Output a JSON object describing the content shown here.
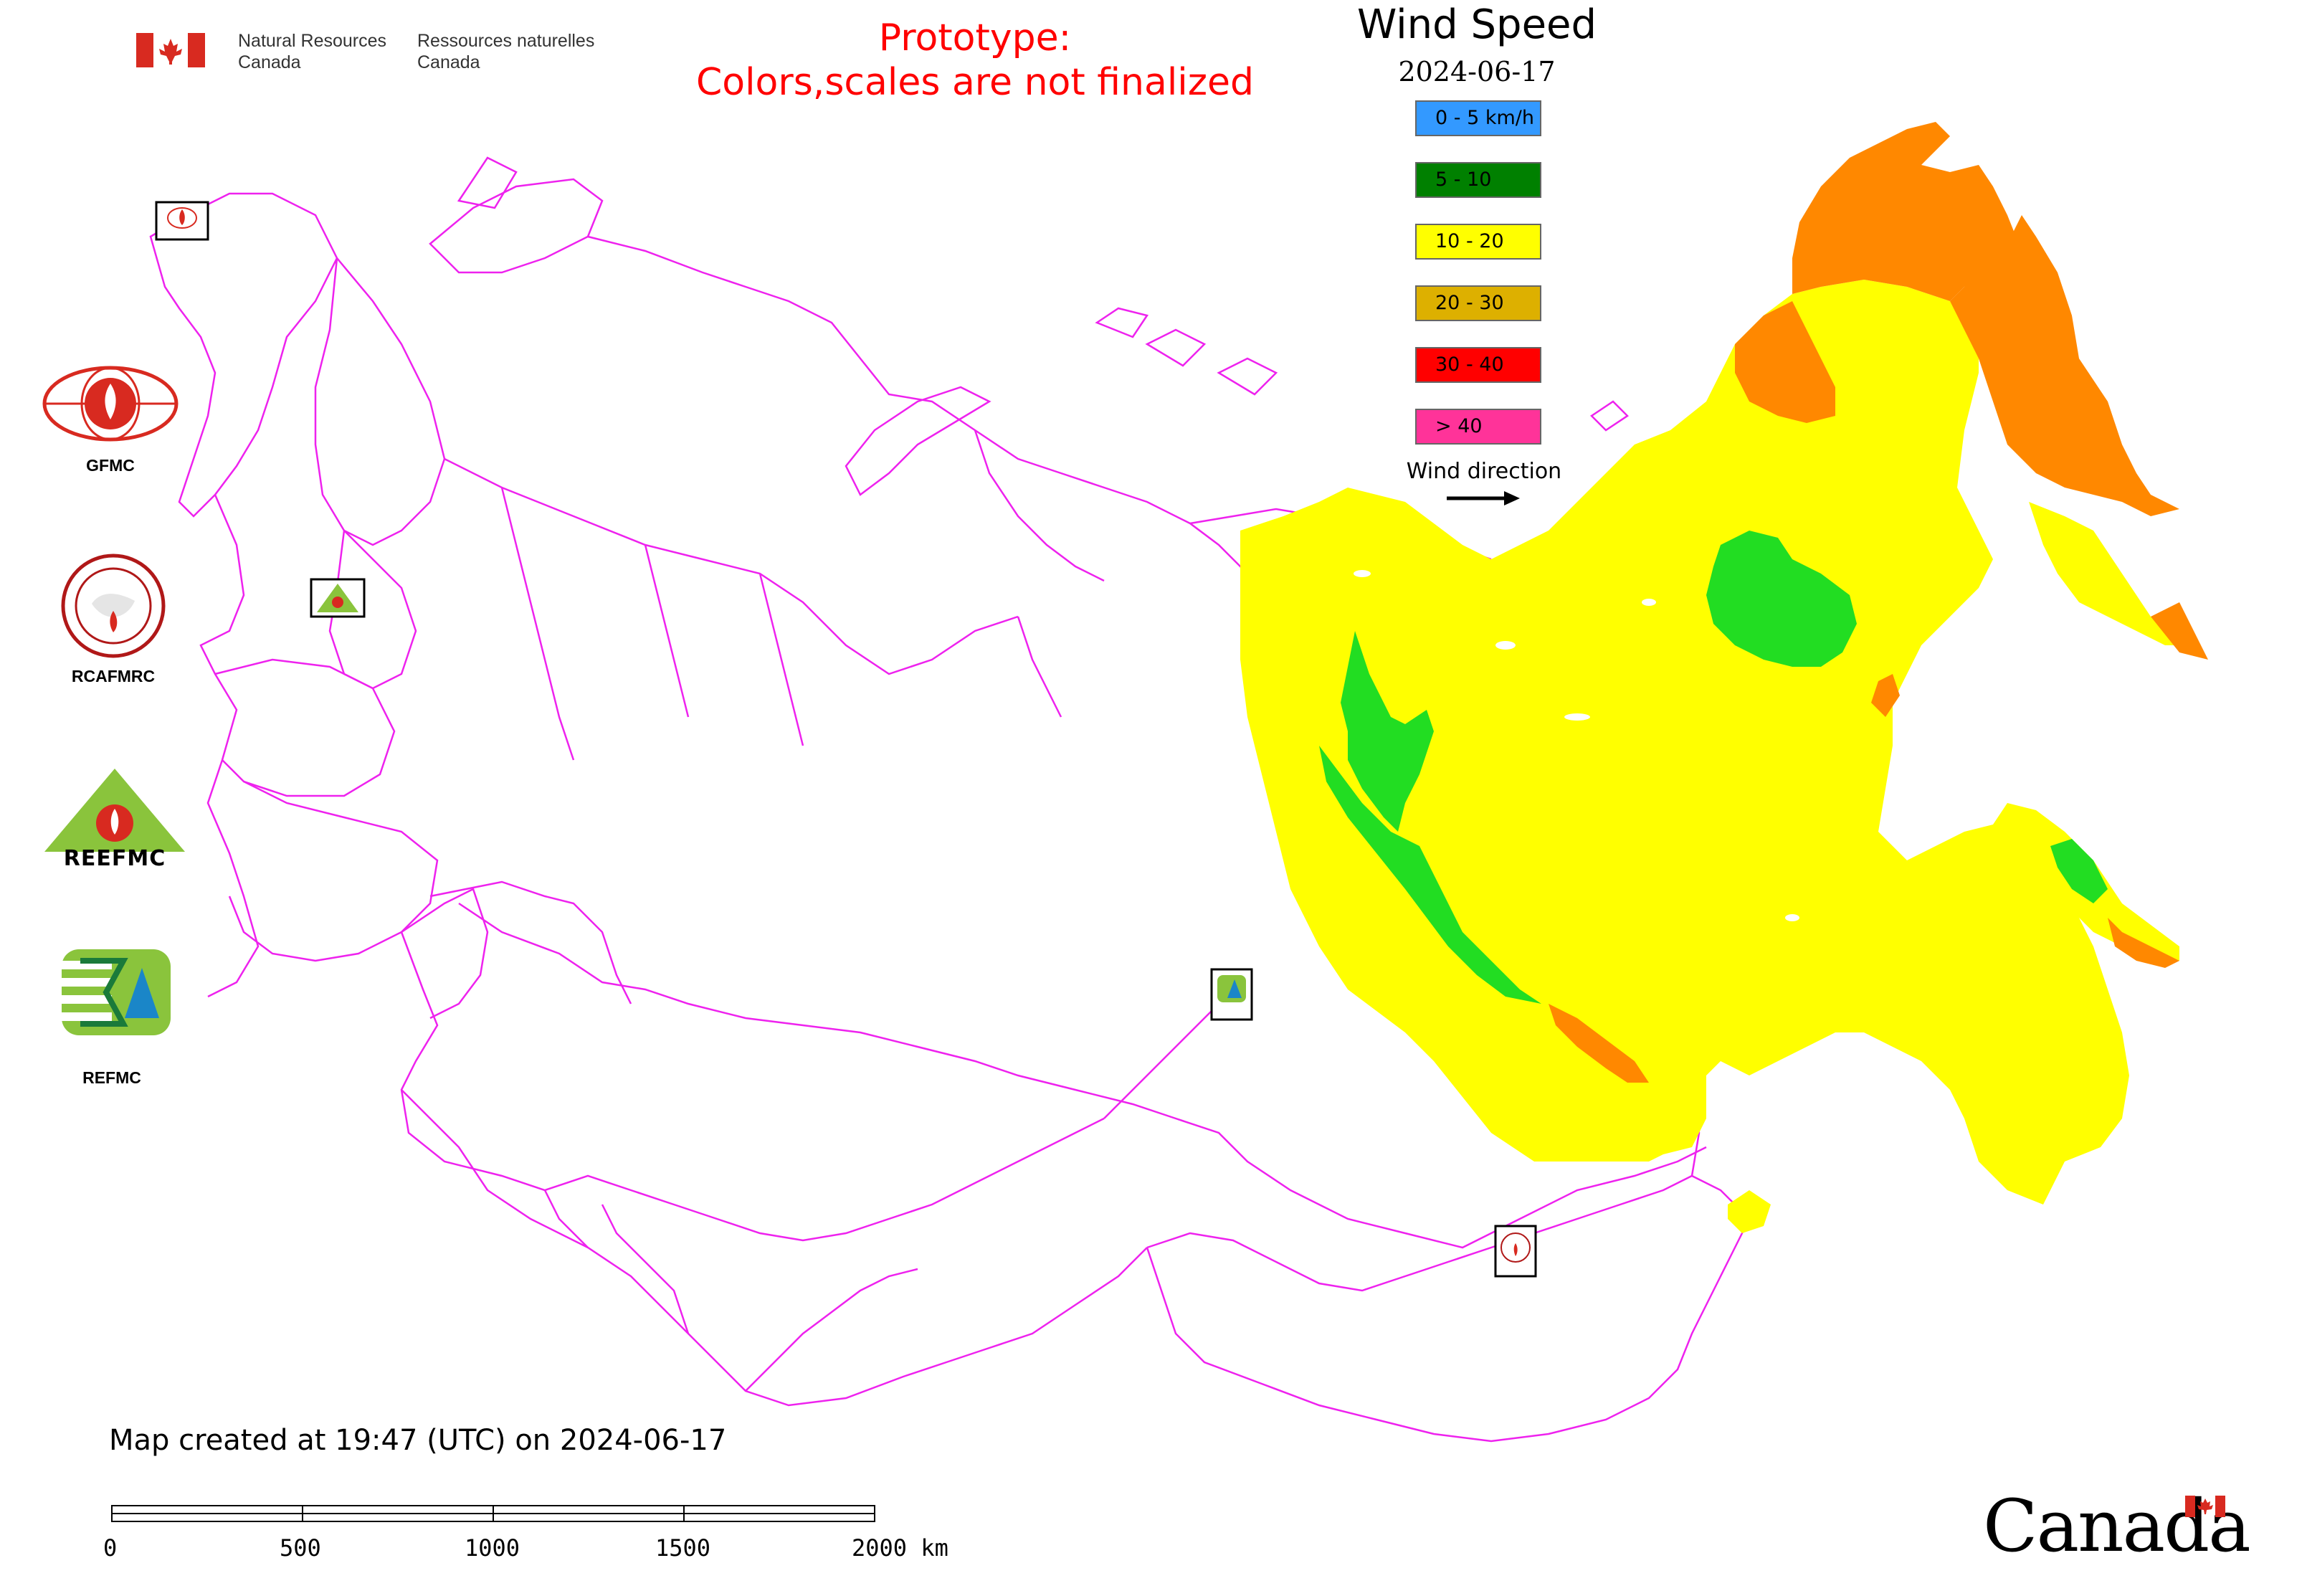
{
  "header": {
    "fip_en_line1": "Natural Resources",
    "fip_en_line2": "Canada",
    "fip_fr_line1": "Ressources naturelles",
    "fip_fr_line2": "Canada",
    "prototype_line1": "Prototype:",
    "prototype_line2": "Colors,scales are not finalized"
  },
  "map": {
    "title": "Wind Speed",
    "date": "2024-06-17",
    "created_text": "Map created at 19:47 (UTC) on 2024-06-17"
  },
  "legend": {
    "items": [
      {
        "label": "0 - 5 km/h",
        "color": "#3399ff"
      },
      {
        "label": "5 - 10",
        "color": "#008000"
      },
      {
        "label": "10 - 20",
        "color": "#ffff00"
      },
      {
        "label": "20 - 30",
        "color": "#ddb000"
      },
      {
        "label": "30 - 40",
        "color": "#ff0000"
      },
      {
        "label": "> 40",
        "color": "#ff3399"
      }
    ],
    "wind_direction_label": "Wind direction"
  },
  "orgs": {
    "gfmc": "GFMC",
    "rcafmrc": "RCAFMRC",
    "reefmc_logo_text": "REEFMC",
    "refmc": "REFMC"
  },
  "scale_bar": {
    "labels": [
      "0",
      "500",
      "1000",
      "1500",
      "2000 km"
    ]
  },
  "wordmark": "Canada",
  "colors": {
    "boundary": "#ee22ee",
    "fire_red": "#d82a20",
    "prototype_text": "#ff0000"
  }
}
